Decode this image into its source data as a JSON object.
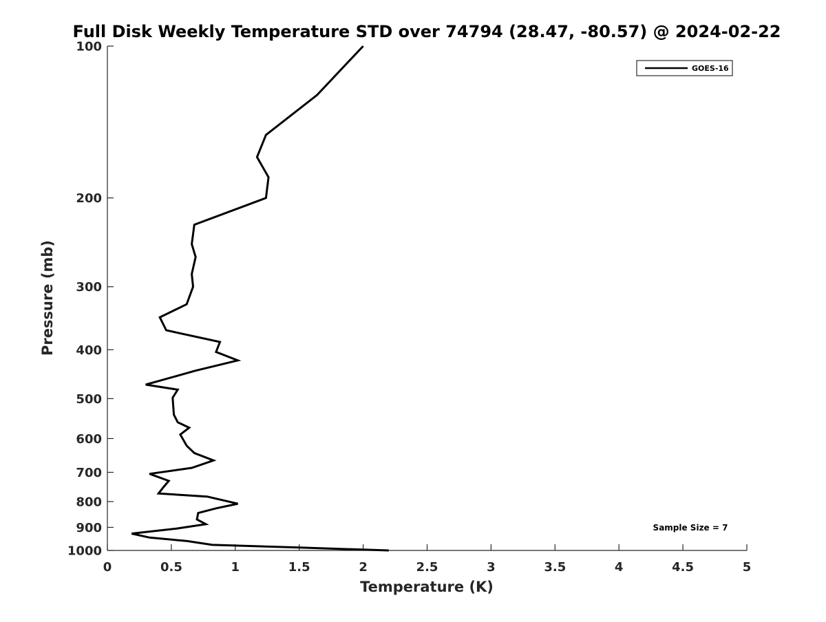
{
  "chart_data": {
    "type": "line",
    "title": "Full Disk Weekly Temperature STD over 74794 (28.47, -80.57) @ 2024-02-22",
    "xlabel": "Temperature (K)",
    "ylabel": "Pressure (mb)",
    "xlim": [
      0,
      5
    ],
    "ylim": [
      100,
      1000
    ],
    "y_scale": "log",
    "y_reversed": true,
    "x_ticks": [
      "0",
      "0.5",
      "1",
      "1.5",
      "2",
      "2.5",
      "3",
      "3.5",
      "4",
      "4.5",
      "5"
    ],
    "y_ticks": [
      "100",
      "200",
      "300",
      "400",
      "500",
      "600",
      "700",
      "800",
      "900",
      "1000"
    ],
    "grid": false,
    "legend_position": "top-right",
    "series": [
      {
        "name": "GOES-16",
        "color": "#000000",
        "points": [
          [
            2.0,
            100
          ],
          [
            1.64,
            125
          ],
          [
            1.24,
            150
          ],
          [
            1.17,
            166
          ],
          [
            1.26,
            182
          ],
          [
            1.24,
            200
          ],
          [
            0.68,
            226
          ],
          [
            0.66,
            247
          ],
          [
            0.69,
            262
          ],
          [
            0.66,
            283
          ],
          [
            0.67,
            300
          ],
          [
            0.62,
            325
          ],
          [
            0.41,
            345
          ],
          [
            0.46,
            366
          ],
          [
            0.88,
            386
          ],
          [
            0.85,
            404
          ],
          [
            1.02,
            420
          ],
          [
            0.69,
            440
          ],
          [
            0.3,
            469
          ],
          [
            0.55,
            480
          ],
          [
            0.51,
            498
          ],
          [
            0.52,
            538
          ],
          [
            0.55,
            557
          ],
          [
            0.64,
            571
          ],
          [
            0.57,
            589
          ],
          [
            0.62,
            620
          ],
          [
            0.68,
            641
          ],
          [
            0.83,
            663
          ],
          [
            0.66,
            686
          ],
          [
            0.33,
            705
          ],
          [
            0.48,
            728
          ],
          [
            0.44,
            748
          ],
          [
            0.4,
            771
          ],
          [
            0.78,
            782
          ],
          [
            1.02,
            808
          ],
          [
            0.85,
            825
          ],
          [
            0.71,
            843
          ],
          [
            0.7,
            868
          ],
          [
            0.77,
            887
          ],
          [
            0.54,
            905
          ],
          [
            0.19,
            926
          ],
          [
            0.33,
            943
          ],
          [
            0.62,
            958
          ],
          [
            0.82,
            975
          ],
          [
            1.5,
            987
          ],
          [
            2.2,
            1000
          ]
        ]
      }
    ],
    "annotation": "Sample Size = 7"
  }
}
